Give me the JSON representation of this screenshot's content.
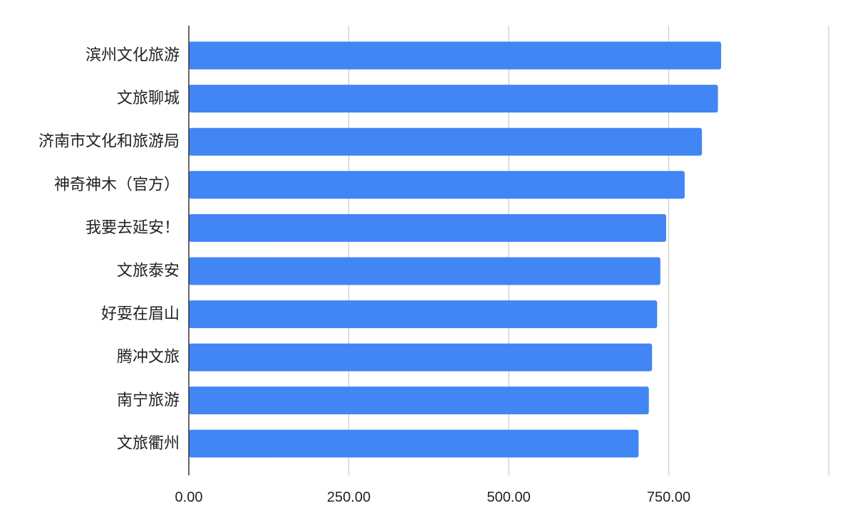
{
  "chart_data": {
    "type": "bar",
    "orientation": "horizontal",
    "title": "",
    "xlabel": "",
    "ylabel": "",
    "categories": [
      "滨州文化旅游",
      "文旅聊城",
      "济南市文化和旅游局",
      "神奇神木（官方）",
      "我要去延安！",
      "文旅泰安",
      "好耍在眉山",
      "腾冲文旅",
      "南宁旅游",
      "文旅衢州"
    ],
    "values": [
      832,
      827,
      802,
      775,
      746,
      737,
      732,
      724,
      719,
      703
    ],
    "xlim": [
      0,
      1000
    ],
    "x_ticks": [
      0,
      250,
      500,
      750,
      1000
    ],
    "x_tick_labels": [
      "0.00",
      "250.00",
      "500.00",
      "750.00",
      ""
    ],
    "grid": "vertical",
    "legend": "none",
    "bar_color": "#4285F4",
    "grid_color": "#cccccc",
    "axis_color": "#333333"
  }
}
